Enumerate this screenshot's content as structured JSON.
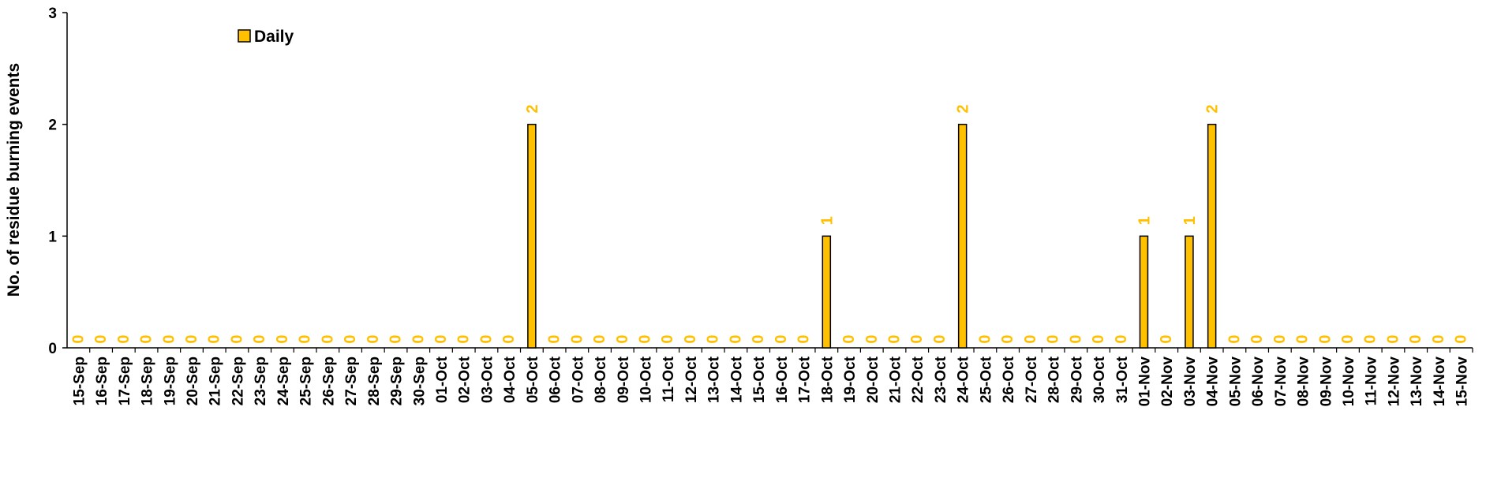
{
  "chart_data": {
    "type": "bar",
    "title": "",
    "xlabel": "",
    "ylabel": "No. of residue burning events",
    "ylim": [
      0,
      3
    ],
    "yticks": [
      "0",
      "1",
      "2",
      "3"
    ],
    "grid": false,
    "legend": {
      "position": "top-left",
      "entries": [
        "Daily"
      ]
    },
    "categories": [
      "15-Sep",
      "16-Sep",
      "17-Sep",
      "18-Sep",
      "19-Sep",
      "20-Sep",
      "21-Sep",
      "22-Sep",
      "23-Sep",
      "24-Sep",
      "25-Sep",
      "26-Sep",
      "27-Sep",
      "28-Sep",
      "29-Sep",
      "30-Sep",
      "01-Oct",
      "02-Oct",
      "03-Oct",
      "04-Oct",
      "05-Oct",
      "06-Oct",
      "07-Oct",
      "08-Oct",
      "09-Oct",
      "10-Oct",
      "11-Oct",
      "12-Oct",
      "13-Oct",
      "14-Oct",
      "15-Oct",
      "16-Oct",
      "17-Oct",
      "18-Oct",
      "19-Oct",
      "20-Oct",
      "21-Oct",
      "22-Oct",
      "23-Oct",
      "24-Oct",
      "25-Oct",
      "26-Oct",
      "27-Oct",
      "28-Oct",
      "29-Oct",
      "30-Oct",
      "31-Oct",
      "01-Nov",
      "02-Nov",
      "03-Nov",
      "04-Nov",
      "05-Nov",
      "06-Nov",
      "07-Nov",
      "08-Nov",
      "09-Nov",
      "10-Nov",
      "11-Nov",
      "12-Nov",
      "13-Nov",
      "14-Nov",
      "15-Nov"
    ],
    "series": [
      {
        "name": "Daily",
        "color": "#FFC000",
        "values": [
          0,
          0,
          0,
          0,
          0,
          0,
          0,
          0,
          0,
          0,
          0,
          0,
          0,
          0,
          0,
          0,
          0,
          0,
          0,
          0,
          2,
          0,
          0,
          0,
          0,
          0,
          0,
          0,
          0,
          0,
          0,
          0,
          0,
          1,
          0,
          0,
          0,
          0,
          0,
          2,
          0,
          0,
          0,
          0,
          0,
          0,
          0,
          1,
          0,
          1,
          2,
          0,
          0,
          0,
          0,
          0,
          0,
          0,
          0,
          0,
          0,
          0
        ]
      }
    ]
  }
}
